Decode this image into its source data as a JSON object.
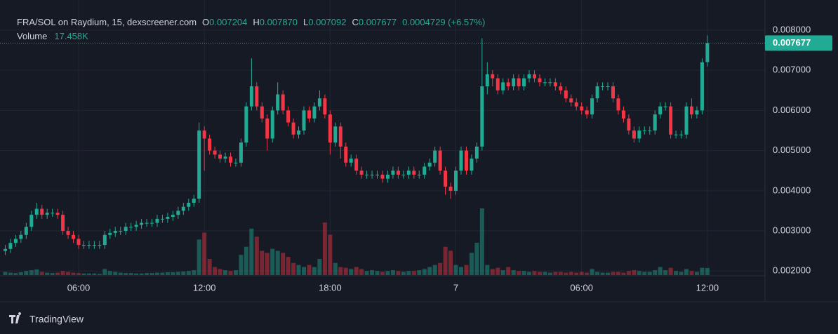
{
  "chart_data": {
    "type": "candlestick",
    "title": "FRA/SOL on Raydium, 15, dexscreener.com",
    "ohlc_legend": [
      {
        "label": "O",
        "value": "0.007204"
      },
      {
        "label": "H",
        "value": "0.007870"
      },
      {
        "label": "L",
        "value": "0.007092"
      },
      {
        "label": "C",
        "value": "0.007677"
      }
    ],
    "change": "0.0004729 (+6.57%)",
    "volume_label": "Volume",
    "volume_value": "17.458K",
    "last_price_label": "0.007677",
    "watermark": "TradingView",
    "up_color": "#22ab94",
    "down_color": "#f23645",
    "xlim": [
      -1,
      145
    ],
    "xticks": [
      {
        "value": 14,
        "label": "06:00"
      },
      {
        "value": 38,
        "label": "12:00"
      },
      {
        "value": 62,
        "label": "18:00"
      },
      {
        "value": 86,
        "label": "7"
      },
      {
        "value": 110,
        "label": "06:00"
      },
      {
        "value": 134,
        "label": "12:00"
      }
    ],
    "ylim": [
      0.0019,
      0.00875
    ],
    "yticks": [
      {
        "value": 0.002,
        "label": "0.002000"
      },
      {
        "value": 0.003,
        "label": "0.003000"
      },
      {
        "value": 0.004,
        "label": "0.004000"
      },
      {
        "value": 0.005,
        "label": "0.005000"
      },
      {
        "value": 0.006,
        "label": "0.006000"
      },
      {
        "value": 0.007,
        "label": "0.007000"
      },
      {
        "value": 0.008,
        "label": "0.008000"
      }
    ],
    "grid": true,
    "open": [
      0.0025,
      0.00255,
      0.0027,
      0.0028,
      0.0029,
      0.0031,
      0.0034,
      0.00355,
      0.0034,
      0.00345,
      0.00345,
      0.0034,
      0.003,
      0.0029,
      0.0028,
      0.00265,
      0.00265,
      0.00265,
      0.00265,
      0.00265,
      0.0029,
      0.00295,
      0.003,
      0.003,
      0.0031,
      0.0031,
      0.00315,
      0.0032,
      0.0032,
      0.0032,
      0.0033,
      0.0033,
      0.00335,
      0.0034,
      0.0035,
      0.0036,
      0.0037,
      0.0038,
      0.0055,
      0.0053,
      0.005,
      0.0049,
      0.0048,
      0.00485,
      0.0047,
      0.0047,
      0.0052,
      0.0061,
      0.0066,
      0.0061,
      0.0058,
      0.0053,
      0.006,
      0.0064,
      0.006,
      0.0057,
      0.0054,
      0.0055,
      0.006,
      0.0058,
      0.0061,
      0.0063,
      0.0059,
      0.0052,
      0.0056,
      0.0051,
      0.0047,
      0.0048,
      0.0045,
      0.0044,
      0.0044,
      0.0044,
      0.0044,
      0.0043,
      0.0044,
      0.0045,
      0.0044,
      0.0044,
      0.0045,
      0.0044,
      0.0044,
      0.0046,
      0.0047,
      0.005,
      0.0045,
      0.0041,
      0.004,
      0.0045,
      0.005,
      0.0045,
      0.0048,
      0.0051,
      0.0066,
      0.0069,
      0.0068,
      0.0065,
      0.0067,
      0.0066,
      0.0068,
      0.0066,
      0.0068,
      0.0069,
      0.0068,
      0.0067,
      0.0067,
      0.0067,
      0.0066,
      0.0065,
      0.0063,
      0.0062,
      0.0061,
      0.006,
      0.0059,
      0.0063,
      0.0066,
      0.0066,
      0.0066,
      0.0063,
      0.006,
      0.0058,
      0.0055,
      0.0053,
      0.0055,
      0.0055,
      0.0055,
      0.0059,
      0.0061,
      0.0061,
      0.0054,
      0.0054,
      0.0054,
      0.0061,
      0.0059,
      0.006,
      0.007204
    ],
    "high": [
      0.00265,
      0.0028,
      0.0029,
      0.003,
      0.0032,
      0.0035,
      0.0037,
      0.00365,
      0.00355,
      0.00355,
      0.00355,
      0.0035,
      0.0031,
      0.003,
      0.0029,
      0.00275,
      0.00275,
      0.00275,
      0.00275,
      0.003,
      0.00305,
      0.0031,
      0.0031,
      0.0032,
      0.0032,
      0.00325,
      0.0033,
      0.0033,
      0.0033,
      0.0034,
      0.0034,
      0.00345,
      0.0035,
      0.0036,
      0.0037,
      0.0038,
      0.0039,
      0.0057,
      0.0056,
      0.0054,
      0.0051,
      0.005,
      0.00495,
      0.00495,
      0.0048,
      0.0053,
      0.0062,
      0.0073,
      0.0067,
      0.0062,
      0.0059,
      0.0061,
      0.0067,
      0.0065,
      0.0061,
      0.0058,
      0.0056,
      0.0061,
      0.0061,
      0.0062,
      0.0065,
      0.0064,
      0.006,
      0.0057,
      0.0057,
      0.0052,
      0.0049,
      0.0049,
      0.0046,
      0.0045,
      0.0045,
      0.0045,
      0.0045,
      0.0045,
      0.0046,
      0.0046,
      0.0045,
      0.0046,
      0.0046,
      0.0045,
      0.0047,
      0.0048,
      0.0051,
      0.0051,
      0.0046,
      0.0042,
      0.0046,
      0.0051,
      0.0051,
      0.0049,
      0.0052,
      0.0078,
      0.0072,
      0.007,
      0.0069,
      0.0068,
      0.0068,
      0.0069,
      0.0069,
      0.0069,
      0.007,
      0.007,
      0.0069,
      0.0068,
      0.0068,
      0.0068,
      0.0067,
      0.0066,
      0.0064,
      0.0063,
      0.0062,
      0.0061,
      0.0064,
      0.0067,
      0.0067,
      0.0067,
      0.0067,
      0.0064,
      0.0061,
      0.0059,
      0.0056,
      0.0056,
      0.0056,
      0.0056,
      0.006,
      0.0062,
      0.0062,
      0.0062,
      0.0055,
      0.0055,
      0.0062,
      0.0063,
      0.0061,
      0.0073,
      0.00787
    ],
    "low": [
      0.0024,
      0.00245,
      0.0026,
      0.0027,
      0.0028,
      0.003,
      0.0033,
      0.0033,
      0.0033,
      0.00335,
      0.0033,
      0.0029,
      0.0028,
      0.0027,
      0.00255,
      0.00255,
      0.00255,
      0.00255,
      0.00255,
      0.00255,
      0.0028,
      0.00285,
      0.0029,
      0.0029,
      0.003,
      0.003,
      0.00305,
      0.0031,
      0.0031,
      0.0031,
      0.0032,
      0.0032,
      0.00325,
      0.0033,
      0.0034,
      0.0035,
      0.0036,
      0.0037,
      0.0045,
      0.0049,
      0.0048,
      0.0047,
      0.0047,
      0.0046,
      0.0046,
      0.0046,
      0.0051,
      0.006,
      0.006,
      0.0057,
      0.005,
      0.0052,
      0.0059,
      0.0059,
      0.0056,
      0.0053,
      0.0053,
      0.0054,
      0.0057,
      0.0057,
      0.006,
      0.0058,
      0.0049,
      0.0051,
      0.0048,
      0.0046,
      0.0046,
      0.0044,
      0.0043,
      0.0043,
      0.0043,
      0.0043,
      0.0042,
      0.0042,
      0.0043,
      0.0043,
      0.0043,
      0.0043,
      0.0043,
      0.0043,
      0.0043,
      0.0045,
      0.0046,
      0.0044,
      0.0039,
      0.0038,
      0.0039,
      0.0044,
      0.0044,
      0.0044,
      0.0047,
      0.005,
      0.0064,
      0.0066,
      0.0064,
      0.0064,
      0.0065,
      0.0065,
      0.0065,
      0.0065,
      0.0067,
      0.0067,
      0.0066,
      0.0066,
      0.0066,
      0.0065,
      0.0064,
      0.0062,
      0.0061,
      0.006,
      0.0059,
      0.0058,
      0.0058,
      0.0062,
      0.0065,
      0.0065,
      0.0062,
      0.0059,
      0.0057,
      0.0054,
      0.0052,
      0.0052,
      0.0054,
      0.0054,
      0.0054,
      0.0058,
      0.006,
      0.0053,
      0.0053,
      0.0053,
      0.0053,
      0.0058,
      0.0058,
      0.0059,
      0.007092
    ],
    "close": [
      0.00255,
      0.0027,
      0.0028,
      0.0029,
      0.0031,
      0.0034,
      0.00355,
      0.0034,
      0.00345,
      0.00345,
      0.0034,
      0.003,
      0.0029,
      0.0028,
      0.00265,
      0.00265,
      0.00265,
      0.00265,
      0.00265,
      0.0029,
      0.00295,
      0.003,
      0.003,
      0.0031,
      0.0031,
      0.00315,
      0.0032,
      0.0032,
      0.0032,
      0.0033,
      0.0033,
      0.00335,
      0.0034,
      0.0035,
      0.0036,
      0.0037,
      0.0038,
      0.0055,
      0.0053,
      0.005,
      0.0049,
      0.0048,
      0.00485,
      0.0047,
      0.0047,
      0.0052,
      0.0061,
      0.0066,
      0.0061,
      0.0058,
      0.0053,
      0.006,
      0.0064,
      0.006,
      0.0057,
      0.0054,
      0.0055,
      0.006,
      0.0058,
      0.0061,
      0.0063,
      0.0059,
      0.0052,
      0.0056,
      0.0051,
      0.0047,
      0.0048,
      0.0045,
      0.0044,
      0.0044,
      0.0044,
      0.0044,
      0.0043,
      0.0044,
      0.0045,
      0.0044,
      0.0044,
      0.0045,
      0.0044,
      0.0044,
      0.0046,
      0.0047,
      0.005,
      0.0045,
      0.0041,
      0.004,
      0.0045,
      0.005,
      0.0045,
      0.0048,
      0.0051,
      0.0066,
      0.0069,
      0.0068,
      0.0065,
      0.0067,
      0.0066,
      0.0068,
      0.0066,
      0.0068,
      0.0069,
      0.0068,
      0.0067,
      0.0067,
      0.0067,
      0.0066,
      0.0065,
      0.0063,
      0.0062,
      0.0061,
      0.006,
      0.0059,
      0.0063,
      0.0066,
      0.0066,
      0.0066,
      0.0063,
      0.006,
      0.0058,
      0.0055,
      0.0053,
      0.0055,
      0.0055,
      0.0055,
      0.0059,
      0.0061,
      0.0061,
      0.0054,
      0.0054,
      0.0054,
      0.0061,
      0.0059,
      0.006,
      0.0072,
      0.007677
    ],
    "volume": [
      8,
      6,
      5,
      7,
      10,
      12,
      14,
      8,
      6,
      5,
      6,
      10,
      8,
      6,
      5,
      4,
      4,
      4,
      3,
      15,
      10,
      8,
      6,
      5,
      5,
      4,
      4,
      5,
      5,
      6,
      6,
      7,
      7,
      8,
      9,
      10,
      12,
      88,
      105,
      40,
      20,
      15,
      12,
      10,
      12,
      50,
      70,
      115,
      95,
      60,
      55,
      65,
      60,
      55,
      45,
      30,
      25,
      20,
      25,
      20,
      40,
      130,
      100,
      30,
      20,
      18,
      15,
      20,
      15,
      10,
      12,
      10,
      8,
      10,
      12,
      10,
      8,
      10,
      10,
      12,
      15,
      20,
      25,
      30,
      70,
      60,
      25,
      20,
      25,
      55,
      80,
      165,
      25,
      15,
      18,
      12,
      20,
      12,
      10,
      10,
      8,
      10,
      8,
      8,
      6,
      8,
      8,
      6,
      8,
      6,
      8,
      6,
      15,
      8,
      6,
      6,
      8,
      8,
      6,
      10,
      12,
      10,
      8,
      8,
      12,
      20,
      12,
      18,
      10,
      8,
      15,
      10,
      8,
      18,
      17.458
    ]
  }
}
